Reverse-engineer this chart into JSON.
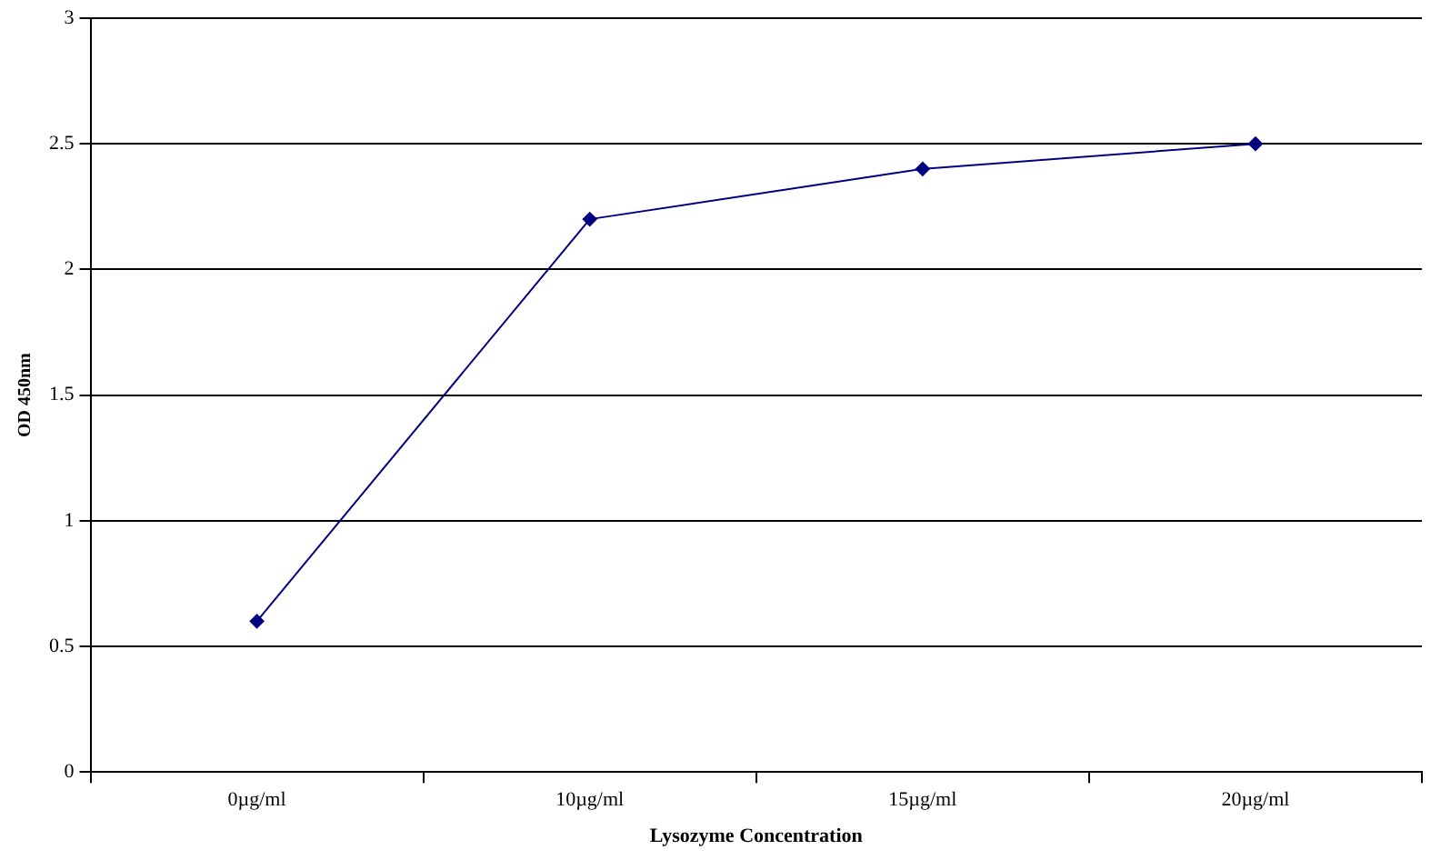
{
  "chart_data": {
    "type": "line",
    "xlabel": "Lysozyme Concentration",
    "ylabel": "OD 450nm",
    "categories": [
      "0µg/ml",
      "10µg/ml",
      "15µg/ml",
      "20µg/ml"
    ],
    "series": [
      {
        "color": "#000080",
        "values": [
          0.6,
          2.2,
          2.4,
          2.5
        ]
      }
    ],
    "ylim": [
      0,
      3
    ],
    "yticks": [
      0,
      0.5,
      1,
      1.5,
      2,
      2.5,
      3
    ],
    "grid": "y",
    "legend": false,
    "marker": "diamond",
    "line_style": "solid"
  }
}
